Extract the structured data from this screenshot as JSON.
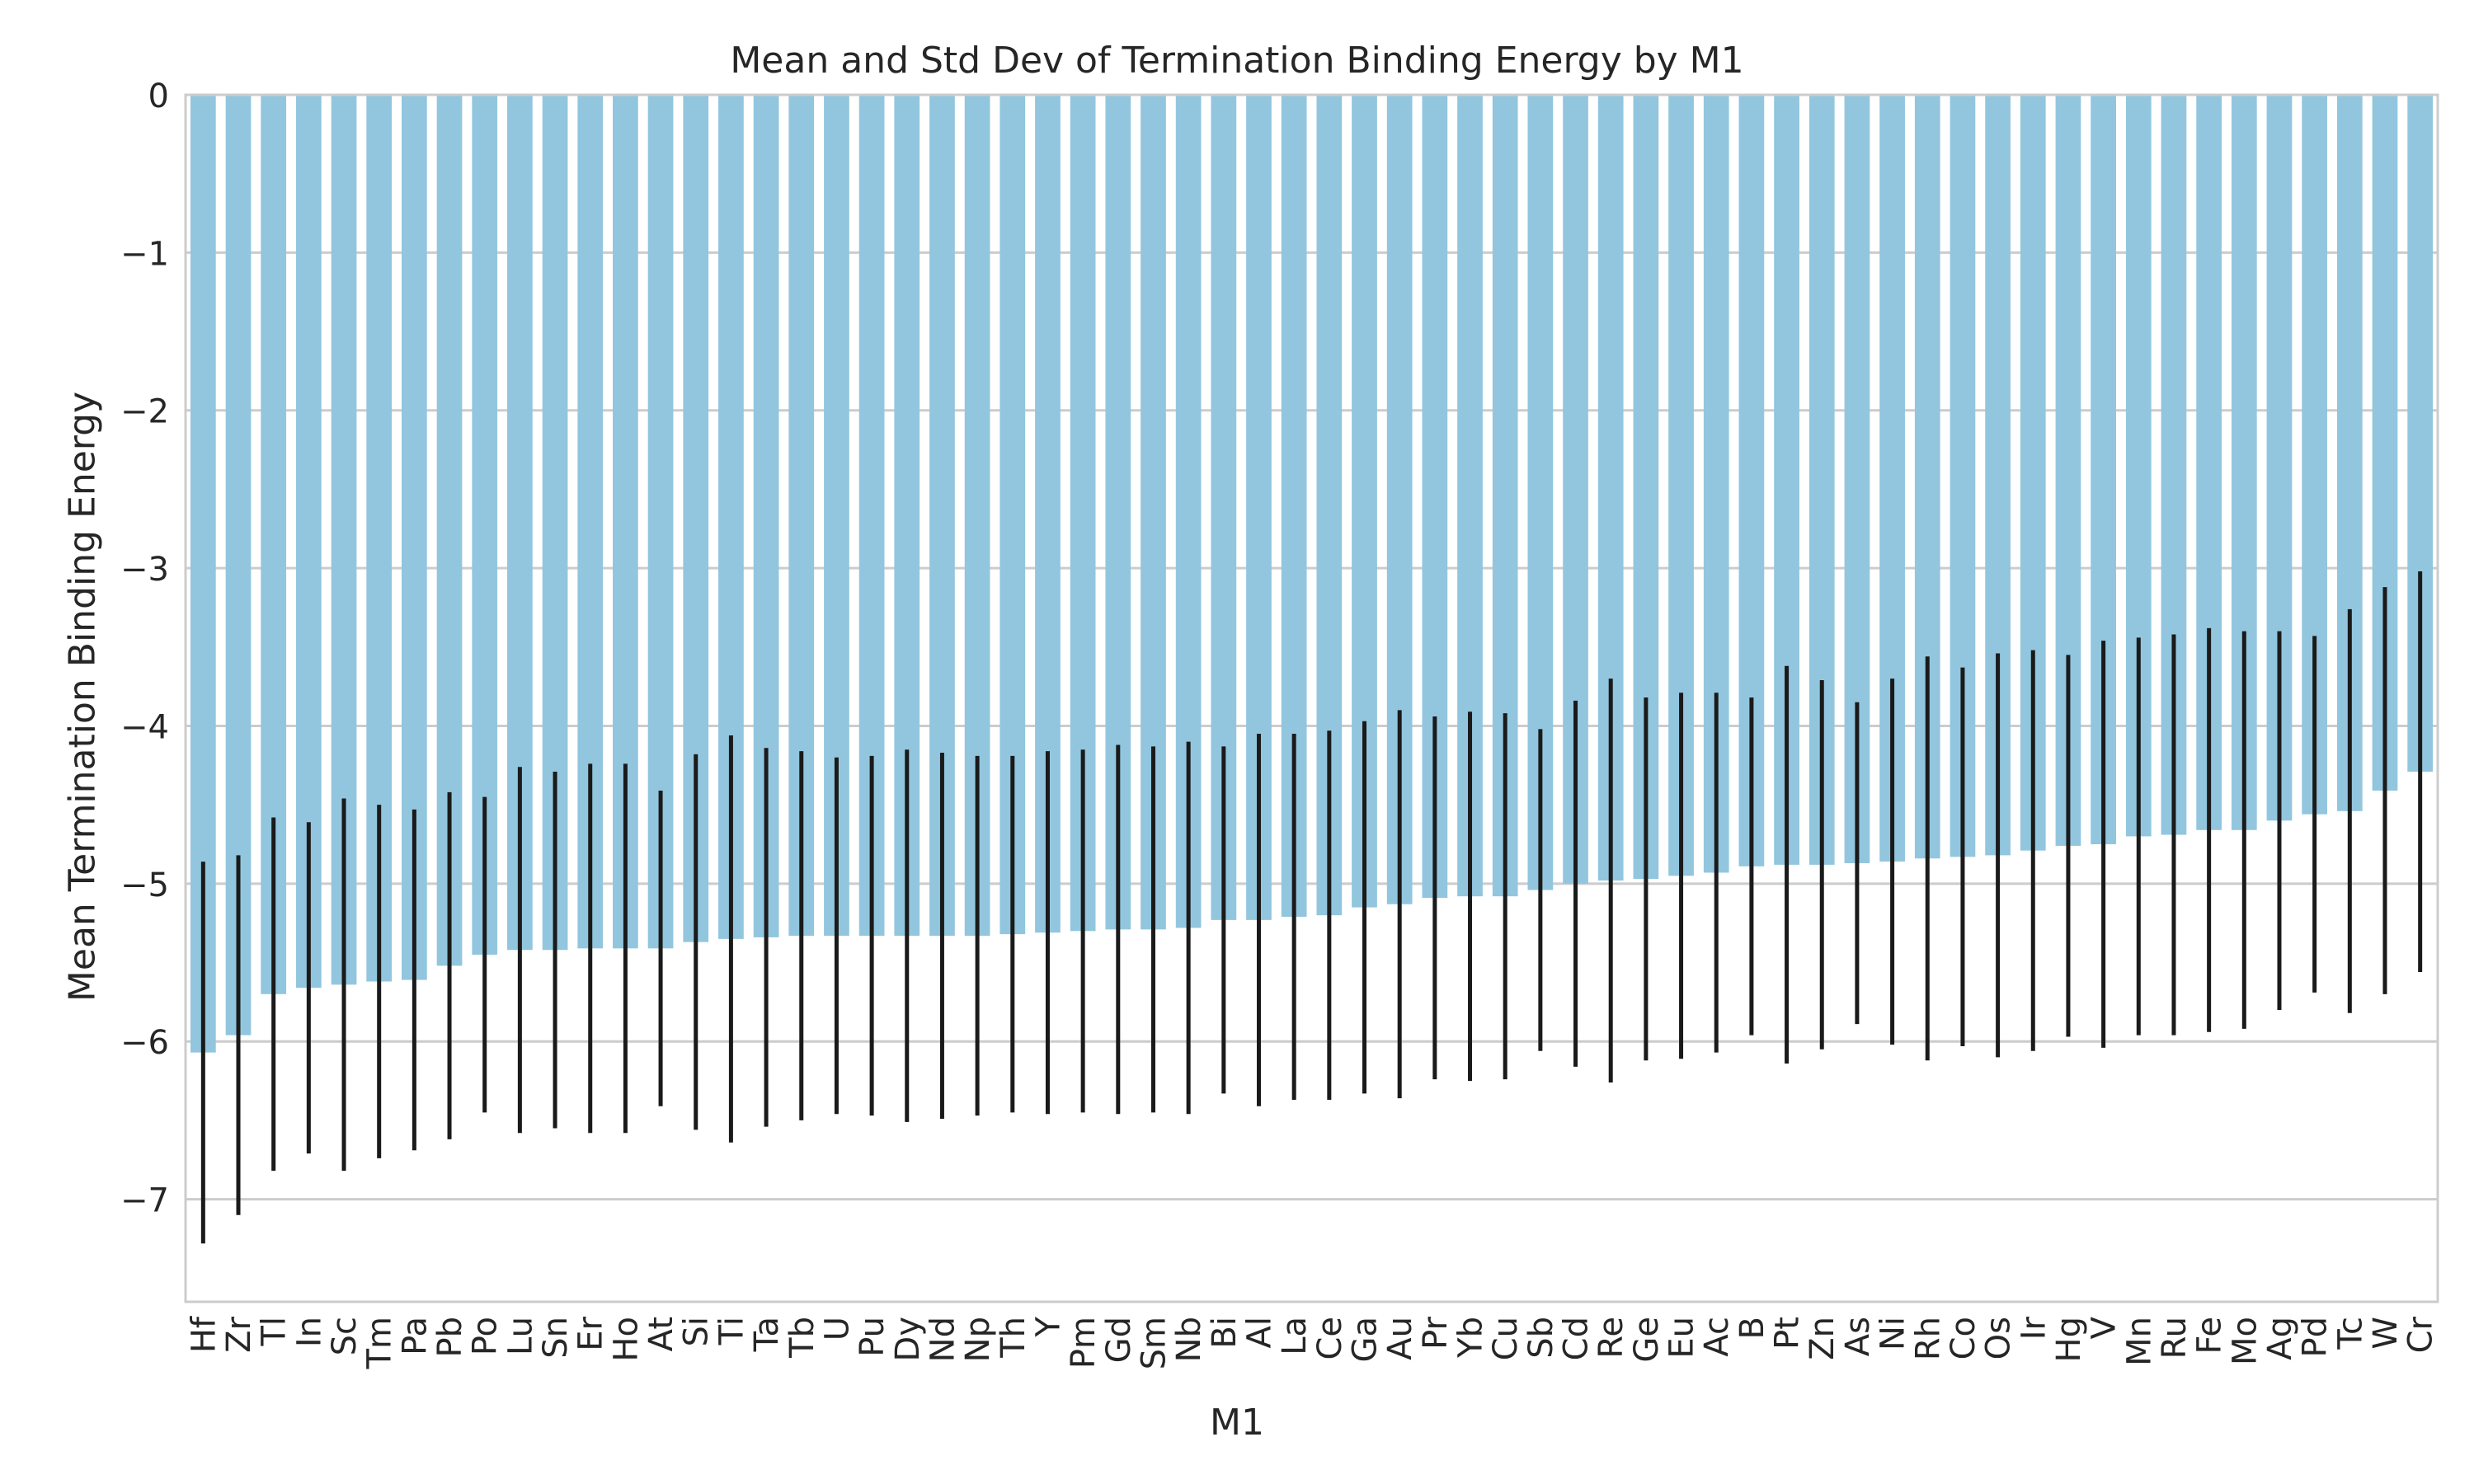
{
  "chart_data": {
    "type": "bar",
    "title": "Mean and Std Dev of Termination Binding Energy by M1",
    "xlabel": "M1",
    "ylabel": "Mean Termination Binding Energy",
    "ylim": [
      -7.65,
      0
    ],
    "yticks": [
      0,
      -1,
      -2,
      -3,
      -4,
      -5,
      -6,
      -7
    ],
    "ytick_labels": [
      "0",
      "−1",
      "−2",
      "−3",
      "−4",
      "−5",
      "−6",
      "−7"
    ],
    "grid": "y",
    "colors": {
      "bar": "#92c6de",
      "error": "#1a1a1a",
      "grid": "#cccccc",
      "axis": "#cccccc",
      "text": "#262626"
    },
    "categories": [
      "Hf",
      "Zr",
      "Tl",
      "In",
      "Sc",
      "Tm",
      "Pa",
      "Pb",
      "Po",
      "Lu",
      "Sn",
      "Er",
      "Ho",
      "At",
      "Si",
      "Ti",
      "Ta",
      "Tb",
      "U",
      "Pu",
      "Dy",
      "Nd",
      "Np",
      "Th",
      "Y",
      "Pm",
      "Gd",
      "Sm",
      "Nb",
      "Bi",
      "Al",
      "La",
      "Ce",
      "Ga",
      "Au",
      "Pr",
      "Yb",
      "Cu",
      "Sb",
      "Cd",
      "Re",
      "Ge",
      "Eu",
      "Ac",
      "B",
      "Pt",
      "Zn",
      "As",
      "Ni",
      "Rh",
      "Co",
      "Os",
      "Ir",
      "Hg",
      "V",
      "Mn",
      "Ru",
      "Fe",
      "Mo",
      "Ag",
      "Pd",
      "Tc",
      "W",
      "Cr"
    ],
    "values": [
      -6.07,
      -5.96,
      -5.7,
      -5.66,
      -5.64,
      -5.62,
      -5.61,
      -5.52,
      -5.45,
      -5.42,
      -5.42,
      -5.41,
      -5.41,
      -5.41,
      -5.37,
      -5.35,
      -5.34,
      -5.33,
      -5.33,
      -5.33,
      -5.33,
      -5.33,
      -5.33,
      -5.32,
      -5.31,
      -5.3,
      -5.29,
      -5.29,
      -5.28,
      -5.23,
      -5.23,
      -5.21,
      -5.2,
      -5.15,
      -5.13,
      -5.09,
      -5.08,
      -5.08,
      -5.04,
      -5.0,
      -4.98,
      -4.97,
      -4.95,
      -4.93,
      -4.89,
      -4.88,
      -4.88,
      -4.87,
      -4.86,
      -4.84,
      -4.83,
      -4.82,
      -4.79,
      -4.76,
      -4.75,
      -4.7,
      -4.69,
      -4.66,
      -4.66,
      -4.6,
      -4.56,
      -4.54,
      -4.41,
      -4.29
    ],
    "std": [
      1.21,
      1.14,
      1.12,
      1.05,
      1.18,
      1.12,
      1.08,
      1.1,
      1.0,
      1.16,
      1.13,
      1.17,
      1.17,
      1.0,
      1.19,
      1.29,
      1.2,
      1.17,
      1.13,
      1.14,
      1.18,
      1.16,
      1.14,
      1.13,
      1.15,
      1.15,
      1.17,
      1.16,
      1.18,
      1.1,
      1.18,
      1.16,
      1.17,
      1.18,
      1.23,
      1.15,
      1.17,
      1.16,
      1.02,
      1.16,
      1.28,
      1.15,
      1.16,
      1.14,
      1.07,
      1.26,
      1.17,
      1.02,
      1.16,
      1.28,
      1.2,
      1.28,
      1.27,
      1.21,
      1.29,
      1.26,
      1.27,
      1.28,
      1.26,
      1.2,
      1.13,
      1.28,
      1.29,
      1.27
    ]
  }
}
